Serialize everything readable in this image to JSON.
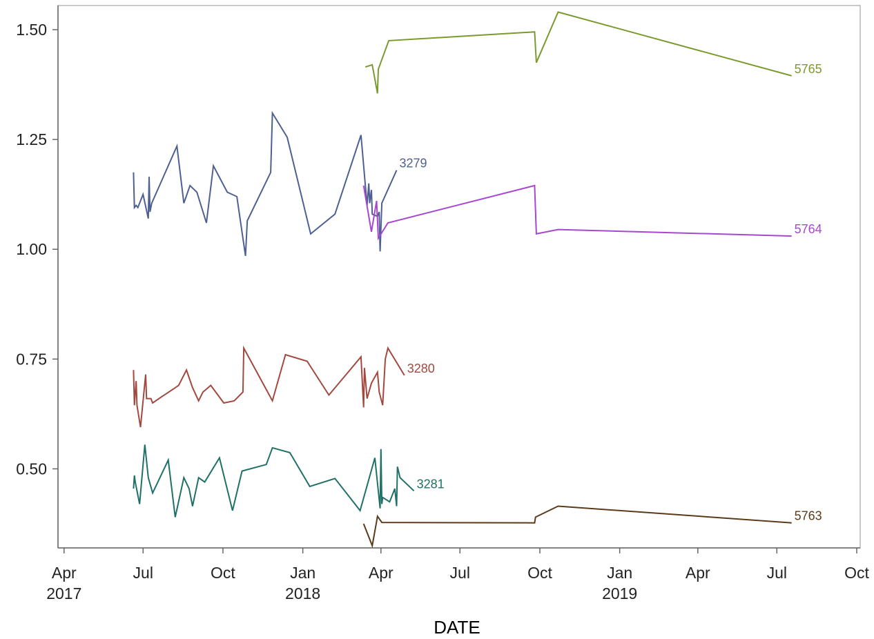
{
  "chart_data": {
    "type": "line",
    "title": "",
    "xlabel": "DATE",
    "ylabel": "",
    "x_axis": {
      "type": "date",
      "range": [
        "2017-03-25",
        "2019-10-05"
      ],
      "ticks": [
        {
          "date": "2017-04-01",
          "label": "Apr",
          "sublabel": "2017"
        },
        {
          "date": "2017-07-01",
          "label": "Jul",
          "sublabel": ""
        },
        {
          "date": "2017-10-01",
          "label": "Oct",
          "sublabel": ""
        },
        {
          "date": "2018-01-01",
          "label": "Jan",
          "sublabel": "2018"
        },
        {
          "date": "2018-04-01",
          "label": "Apr",
          "sublabel": ""
        },
        {
          "date": "2018-07-01",
          "label": "Jul",
          "sublabel": ""
        },
        {
          "date": "2018-10-01",
          "label": "Oct",
          "sublabel": ""
        },
        {
          "date": "2019-01-01",
          "label": "Jan",
          "sublabel": "2019"
        },
        {
          "date": "2019-04-01",
          "label": "Apr",
          "sublabel": ""
        },
        {
          "date": "2019-07-01",
          "label": "Jul",
          "sublabel": ""
        },
        {
          "date": "2019-10-01",
          "label": "Oct",
          "sublabel": ""
        }
      ]
    },
    "y_axis": {
      "range": [
        0.32,
        1.555
      ],
      "ticks": [
        {
          "value": 0.5,
          "label": "0.50"
        },
        {
          "value": 0.75,
          "label": "0.75"
        },
        {
          "value": 1.0,
          "label": "1.00"
        },
        {
          "value": 1.25,
          "label": "1.25"
        },
        {
          "value": 1.5,
          "label": "1.50"
        }
      ]
    },
    "grid": false,
    "legend": "inline end labels",
    "series": [
      {
        "name": "3279",
        "color": "#4e5f91",
        "points": [
          [
            "2017-06-20",
            1.175
          ],
          [
            "2017-06-21",
            1.095
          ],
          [
            "2017-06-23",
            1.1
          ],
          [
            "2017-06-25",
            1.095
          ],
          [
            "2017-07-01",
            1.125
          ],
          [
            "2017-07-07",
            1.07
          ],
          [
            "2017-07-08",
            1.165
          ],
          [
            "2017-07-09",
            1.085
          ],
          [
            "2017-07-11",
            1.105
          ],
          [
            "2017-08-09",
            1.235
          ],
          [
            "2017-08-17",
            1.105
          ],
          [
            "2017-08-24",
            1.145
          ],
          [
            "2017-09-01",
            1.13
          ],
          [
            "2017-09-12",
            1.06
          ],
          [
            "2017-09-20",
            1.19
          ],
          [
            "2017-10-06",
            1.13
          ],
          [
            "2017-10-17",
            1.12
          ],
          [
            "2017-10-27",
            0.985
          ],
          [
            "2017-10-29",
            1.065
          ],
          [
            "2017-11-25",
            1.175
          ],
          [
            "2017-11-27",
            1.31
          ],
          [
            "2017-12-14",
            1.255
          ],
          [
            "2018-01-10",
            1.035
          ],
          [
            "2018-02-07",
            1.08
          ],
          [
            "2018-03-09",
            1.26
          ],
          [
            "2018-03-16",
            1.1
          ],
          [
            "2018-03-18",
            1.15
          ],
          [
            "2018-03-19",
            1.105
          ],
          [
            "2018-03-21",
            1.135
          ],
          [
            "2018-03-22",
            1.08
          ],
          [
            "2018-03-28",
            1.075
          ],
          [
            "2018-03-30",
            1.085
          ],
          [
            "2018-03-31",
            0.995
          ],
          [
            "2018-04-02",
            1.105
          ],
          [
            "2018-04-19",
            1.18
          ]
        ]
      },
      {
        "name": "3280",
        "color": "#a2483e",
        "points": [
          [
            "2017-06-20",
            0.725
          ],
          [
            "2017-06-21",
            0.645
          ],
          [
            "2017-06-23",
            0.7
          ],
          [
            "2017-06-24",
            0.645
          ],
          [
            "2017-06-28",
            0.595
          ],
          [
            "2017-07-04",
            0.715
          ],
          [
            "2017-07-05",
            0.66
          ],
          [
            "2017-07-10",
            0.66
          ],
          [
            "2017-07-12",
            0.65
          ],
          [
            "2017-07-23",
            0.665
          ],
          [
            "2017-07-27",
            0.67
          ],
          [
            "2017-08-11",
            0.69
          ],
          [
            "2017-08-20",
            0.725
          ],
          [
            "2017-08-27",
            0.685
          ],
          [
            "2017-09-03",
            0.655
          ],
          [
            "2017-09-08",
            0.675
          ],
          [
            "2017-09-17",
            0.69
          ],
          [
            "2017-10-02",
            0.65
          ],
          [
            "2017-10-14",
            0.655
          ],
          [
            "2017-10-24",
            0.675
          ],
          [
            "2017-10-25",
            0.775
          ],
          [
            "2017-11-27",
            0.655
          ],
          [
            "2017-12-12",
            0.76
          ],
          [
            "2018-01-06",
            0.745
          ],
          [
            "2018-01-31",
            0.668
          ],
          [
            "2018-03-09",
            0.755
          ],
          [
            "2018-03-12",
            0.64
          ],
          [
            "2018-03-13",
            0.73
          ],
          [
            "2018-03-16",
            0.66
          ],
          [
            "2018-03-21",
            0.695
          ],
          [
            "2018-03-28",
            0.72
          ],
          [
            "2018-03-30",
            0.675
          ],
          [
            "2018-04-03",
            0.645
          ],
          [
            "2018-04-06",
            0.75
          ],
          [
            "2018-04-09",
            0.775
          ],
          [
            "2018-04-28",
            0.713
          ]
        ]
      },
      {
        "name": "3281",
        "color": "#1f7067",
        "points": [
          [
            "2017-06-20",
            0.455
          ],
          [
            "2017-06-21",
            0.485
          ],
          [
            "2017-06-22",
            0.47
          ],
          [
            "2017-06-27",
            0.42
          ],
          [
            "2017-07-03",
            0.555
          ],
          [
            "2017-07-07",
            0.48
          ],
          [
            "2017-07-12",
            0.445
          ],
          [
            "2017-07-30",
            0.52
          ],
          [
            "2017-08-07",
            0.39
          ],
          [
            "2017-08-17",
            0.48
          ],
          [
            "2017-08-23",
            0.455
          ],
          [
            "2017-08-27",
            0.415
          ],
          [
            "2017-09-03",
            0.48
          ],
          [
            "2017-09-10",
            0.47
          ],
          [
            "2017-09-27",
            0.525
          ],
          [
            "2017-10-12",
            0.405
          ],
          [
            "2017-10-23",
            0.495
          ],
          [
            "2017-11-20",
            0.51
          ],
          [
            "2017-11-27",
            0.548
          ],
          [
            "2017-12-17",
            0.537
          ],
          [
            "2018-01-09",
            0.46
          ],
          [
            "2018-02-07",
            0.478
          ],
          [
            "2018-03-08",
            0.405
          ],
          [
            "2018-03-25",
            0.525
          ],
          [
            "2018-03-31",
            0.41
          ],
          [
            "2018-04-01",
            0.545
          ],
          [
            "2018-04-02",
            0.42
          ],
          [
            "2018-04-03",
            0.435
          ],
          [
            "2018-04-11",
            0.425
          ],
          [
            "2018-04-17",
            0.455
          ],
          [
            "2018-04-19",
            0.415
          ],
          [
            "2018-04-20",
            0.505
          ],
          [
            "2018-04-23",
            0.48
          ],
          [
            "2018-05-09",
            0.45
          ]
        ]
      },
      {
        "name": "5765",
        "color": "#7a9a2e",
        "points": [
          [
            "2018-03-14",
            1.415
          ],
          [
            "2018-03-22",
            1.42
          ],
          [
            "2018-03-28",
            1.355
          ],
          [
            "2018-03-29",
            1.41
          ],
          [
            "2018-04-10",
            1.475
          ],
          [
            "2018-09-25",
            1.495
          ],
          [
            "2018-09-27",
            1.425
          ],
          [
            "2018-10-22",
            1.54
          ],
          [
            "2019-07-18",
            1.395
          ]
        ]
      },
      {
        "name": "5764",
        "color": "#a647d2",
        "points": [
          [
            "2018-03-12",
            1.145
          ],
          [
            "2018-03-21",
            1.04
          ],
          [
            "2018-03-27",
            1.11
          ],
          [
            "2018-03-29",
            1.025
          ],
          [
            "2018-04-09",
            1.06
          ],
          [
            "2018-09-25",
            1.145
          ],
          [
            "2018-09-27",
            1.035
          ],
          [
            "2018-10-22",
            1.045
          ],
          [
            "2019-07-18",
            1.03
          ]
        ]
      },
      {
        "name": "5763",
        "color": "#5b3a1a",
        "points": [
          [
            "2018-03-12",
            0.375
          ],
          [
            "2018-03-22",
            0.325
          ],
          [
            "2018-03-27",
            0.38
          ],
          [
            "2018-03-28",
            0.392
          ],
          [
            "2018-04-02",
            0.378
          ],
          [
            "2018-09-25",
            0.377
          ],
          [
            "2018-09-26",
            0.39
          ],
          [
            "2018-10-22",
            0.415
          ],
          [
            "2019-07-18",
            0.377
          ]
        ]
      }
    ]
  }
}
